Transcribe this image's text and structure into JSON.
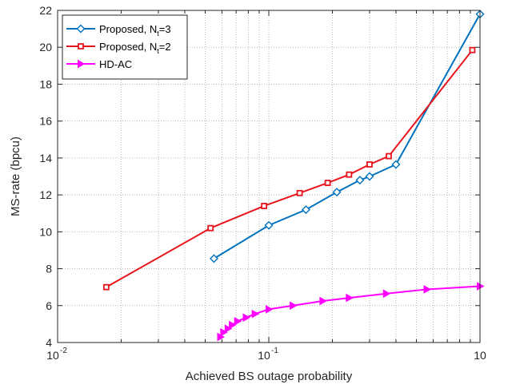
{
  "chart_data": {
    "type": "line",
    "title": "",
    "xlabel": "Achieved BS outage probability",
    "ylabel": "MS-rate (bpcu)",
    "xscale": "log",
    "xlim": [
      0.01,
      1
    ],
    "ylim": [
      4,
      22
    ],
    "grid": "on (log minor grid on x, major grid on y)",
    "legend_position": "top-left",
    "x_ticks": [
      {
        "base": "10",
        "exp": "-2"
      },
      {
        "base": "10",
        "exp": "-1"
      },
      {
        "base": "10",
        "exp": ""
      }
    ],
    "y_ticks": [
      "4",
      "6",
      "8",
      "10",
      "12",
      "14",
      "16",
      "18",
      "20",
      "22"
    ],
    "series": [
      {
        "name": "Proposed, N",
        "name_sub": "t",
        "name_suffix": "=3",
        "color": "#0072BD",
        "marker": "diamond",
        "x": [
          0.055,
          0.1,
          0.15,
          0.21,
          0.27,
          0.3,
          0.4,
          1.0
        ],
        "y": [
          8.55,
          10.35,
          11.2,
          12.15,
          12.8,
          13.0,
          13.65,
          21.8
        ]
      },
      {
        "name": "Proposed, N",
        "name_sub": "t",
        "name_suffix": "=2",
        "color": "#E8141C",
        "marker": "square",
        "x": [
          0.017,
          0.053,
          0.095,
          0.14,
          0.19,
          0.24,
          0.3,
          0.37,
          0.92
        ],
        "y": [
          7.0,
          10.2,
          11.4,
          12.1,
          12.65,
          13.1,
          13.65,
          14.1,
          19.85
        ]
      },
      {
        "name": "HD-AC",
        "name_sub": "",
        "name_suffix": "",
        "color": "#FF00FF",
        "marker": "triangle-right",
        "x": [
          0.059,
          0.061,
          0.064,
          0.067,
          0.071,
          0.078,
          0.086,
          0.1,
          0.13,
          0.18,
          0.24,
          0.36,
          0.56,
          1.0
        ],
        "y": [
          4.3,
          4.55,
          4.75,
          4.95,
          5.15,
          5.35,
          5.55,
          5.8,
          6.0,
          6.25,
          6.42,
          6.65,
          6.88,
          7.05
        ]
      }
    ]
  }
}
